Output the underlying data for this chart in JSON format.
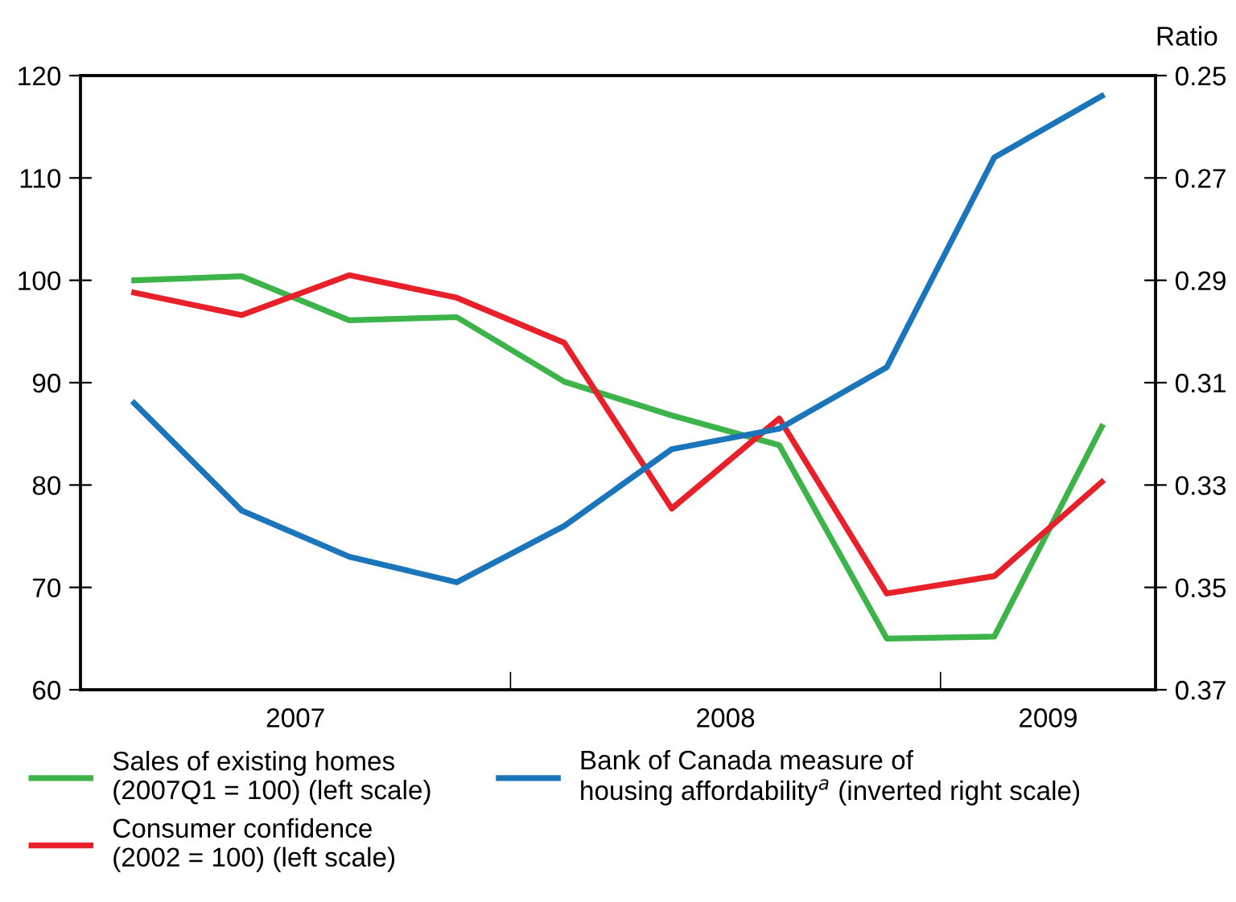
{
  "chart_data": {
    "type": "line",
    "x": [
      2007.125,
      2007.375,
      2007.625,
      2007.875,
      2008.125,
      2008.375,
      2008.625,
      2008.875,
      2009.125,
      2009.375
    ],
    "xlim": [
      2007,
      2009.5
    ],
    "xticks": [
      {
        "value": 2007.5,
        "label": "2007"
      },
      {
        "value": 2008,
        "label": null
      },
      {
        "value": 2008.5,
        "label": "2008"
      },
      {
        "value": 2009,
        "label": null
      },
      {
        "value": 2009.25,
        "label": "2009"
      }
    ],
    "ylim": [
      60,
      120
    ],
    "yticks": [
      60,
      70,
      80,
      90,
      100,
      110,
      120
    ],
    "y2lim": [
      0.37,
      0.25
    ],
    "y2ticks": [
      0.25,
      0.27,
      0.29,
      0.31,
      0.33,
      0.35,
      0.37
    ],
    "y2label": "Ratio",
    "series": [
      {
        "name": "Sales of existing homes\n(2007Q1 = 100) (left scale)",
        "color": "#3cb44a",
        "values": [
          100,
          100.4,
          96.1,
          96.4,
          90.1,
          86.8,
          83.9,
          65.0,
          65.2,
          85.7
        ]
      },
      {
        "name": "Consumer confidence\n(2002 = 100) (left scale)",
        "color": "#e8202a",
        "values": [
          98.8,
          96.6,
          100.5,
          98.3,
          93.9,
          77.7,
          86.5,
          69.4,
          71.1,
          80.3
        ]
      },
      {
        "name": "Bank of Canada measure of\nhousing affordability$^{a}$ (inverted right scale)",
        "color": "#1a75bb",
        "axis": "y2",
        "values": [
          0.314,
          0.335,
          0.344,
          0.349,
          0.338,
          0.323,
          0.319,
          0.307,
          0.266,
          0.254
        ]
      }
    ],
    "legend": "bottom",
    "grid": false,
    "marker": "none",
    "line_style": "solid"
  }
}
